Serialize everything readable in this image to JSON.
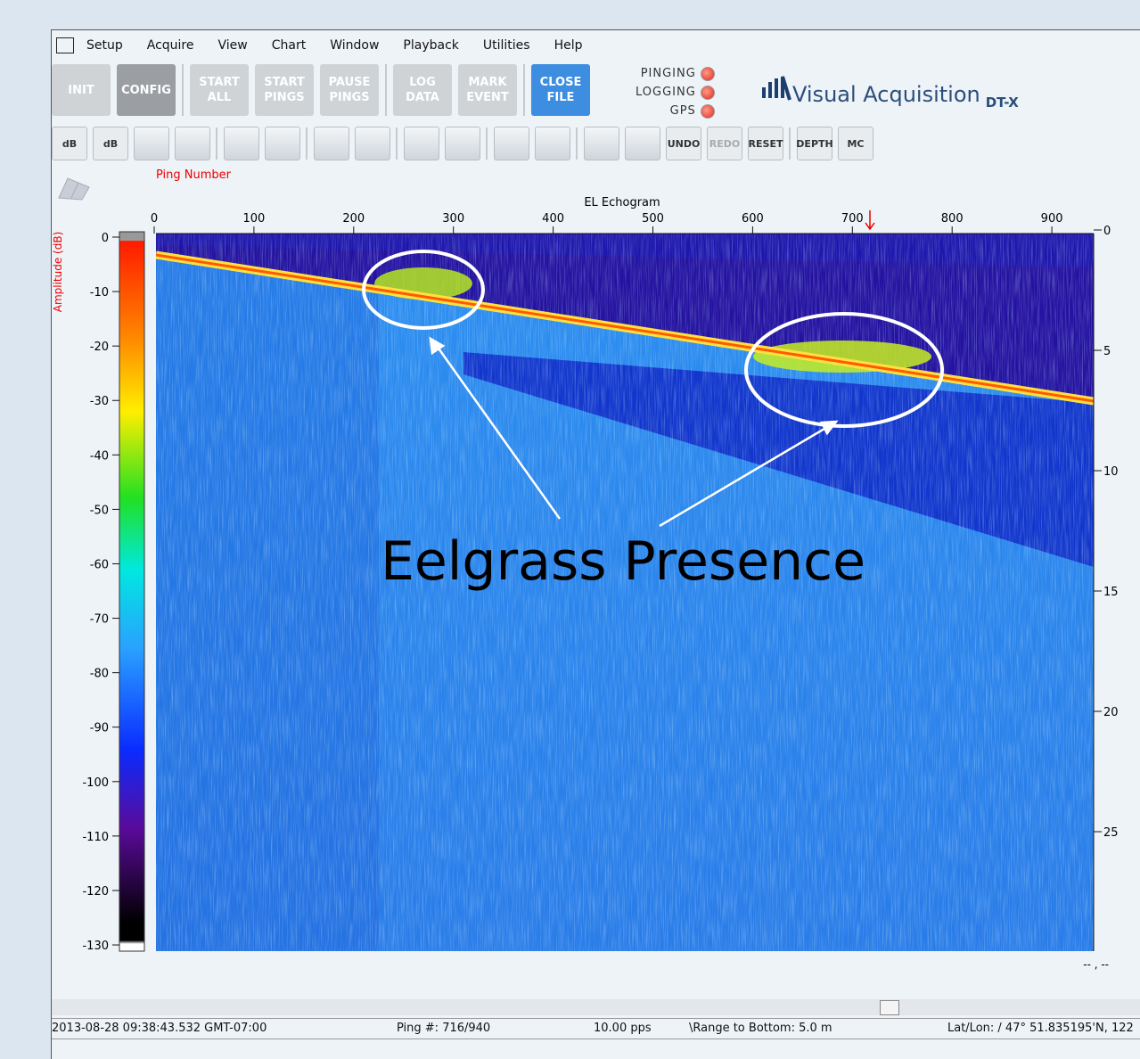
{
  "menu": [
    "Setup",
    "Acquire",
    "View",
    "Chart",
    "Window",
    "Playback",
    "Utilities",
    "Help"
  ],
  "buttons": [
    [
      "INIT"
    ],
    [
      "CONFIG"
    ],
    [
      "START",
      "ALL"
    ],
    [
      "START",
      "PINGS"
    ],
    [
      "PAUSE",
      "PINGS"
    ],
    [
      "LOG",
      "DATA"
    ],
    [
      "MARK",
      "EVENT"
    ],
    [
      "CLOSE",
      "FILE"
    ]
  ],
  "status_lights": [
    "PINGING",
    "LOGGING",
    "GPS"
  ],
  "logo": {
    "name": "Visual Acquisition",
    "suffix": "DT-X"
  },
  "tools": {
    "gain_up": "dB",
    "gain_down": "dB",
    "undo": "UNDO",
    "redo": "REDO",
    "reset": "RESET",
    "depth": "DEPTH",
    "mc": "MC"
  },
  "echogram": {
    "x_label": "Ping Number",
    "title": "EL Echogram",
    "xticks": [
      0,
      100,
      200,
      300,
      400,
      500,
      600,
      700,
      800,
      900
    ],
    "colorbar_label": "Amplitude (dB)",
    "colorbar_ticks": [
      0,
      -10,
      -20,
      -30,
      -40,
      -50,
      -60,
      -70,
      -80,
      -90,
      -100,
      -110,
      -120,
      -130
    ],
    "depth_ticks": [
      0,
      5,
      10,
      15,
      20,
      25
    ],
    "corner": "-- , --"
  },
  "annotation": "Eelgrass Presence",
  "status": [
    "2013-08-28 09:38:43.532 GMT-07:00",
    "Ping #: 716/940",
    "10.00 pps",
    "\\Range to Bottom: 5.0 m",
    "Lat/Lon: / 47° 51.835195'N, 122"
  ]
}
